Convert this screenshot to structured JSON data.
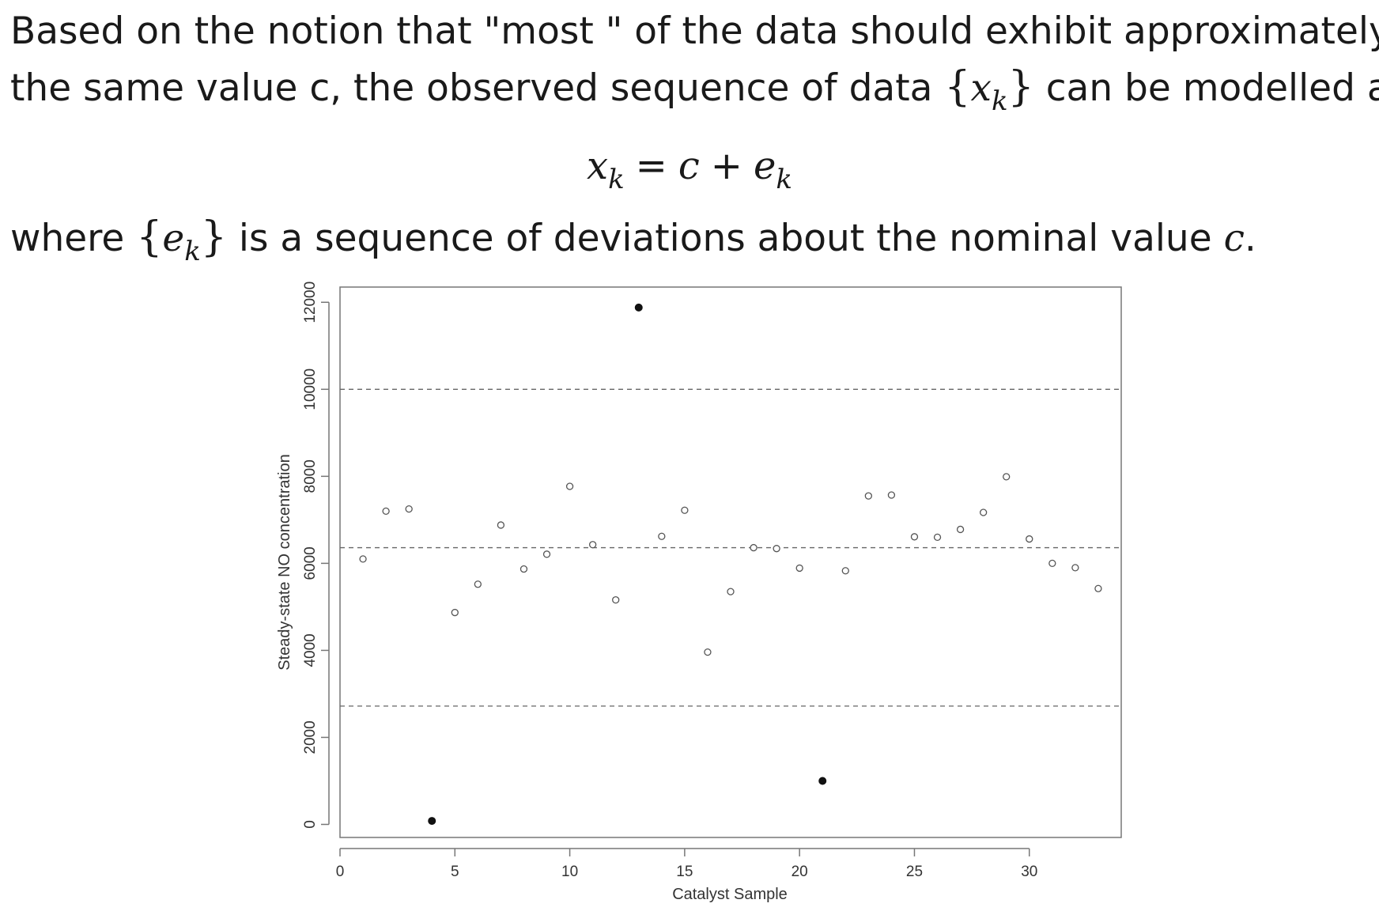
{
  "text": {
    "line1": "Based on the notion that \"most \" of the data should exhibit approximately",
    "line2_before": "the same value c, the observed sequence of data",
    "line2_var": "x",
    "line2_sub": "k",
    "line2_after": "can be modelled as",
    "eq_lhs": "x",
    "eq_lhs_sub": "k",
    "eq_equals": "=",
    "eq_c": "c",
    "eq_plus": "+",
    "eq_e": "e",
    "eq_e_sub": "k",
    "line3_before": "where",
    "line3_var": "e",
    "line3_sub": "k",
    "line3_mid": "is a sequence of deviations about the nominal value",
    "line3_c": "c",
    "line3_end": ".",
    "brace_open": "{",
    "brace_close": "}"
  },
  "chart_data": {
    "type": "scatter",
    "xlabel": "Catalyst Sample",
    "ylabel": "Steady-state NO concentration",
    "xlim": [
      0,
      34
    ],
    "ylim": [
      -300,
      12350
    ],
    "xticks": [
      0,
      5,
      10,
      15,
      20,
      25,
      30
    ],
    "yticks": [
      0,
      2000,
      4000,
      6000,
      8000,
      10000,
      12000
    ],
    "hlines": [
      10000,
      6360,
      2720
    ],
    "hline_style": "dashed",
    "grid": false,
    "marker_open": "hollow-circle",
    "marker_outlier": "filled-circle",
    "points": [
      {
        "x": 1,
        "y": 6100,
        "outlier": false
      },
      {
        "x": 2,
        "y": 7200,
        "outlier": false
      },
      {
        "x": 3,
        "y": 7250,
        "outlier": false
      },
      {
        "x": 4,
        "y": 80,
        "outlier": true
      },
      {
        "x": 5,
        "y": 4870,
        "outlier": false
      },
      {
        "x": 6,
        "y": 5520,
        "outlier": false
      },
      {
        "x": 7,
        "y": 6880,
        "outlier": false
      },
      {
        "x": 8,
        "y": 5870,
        "outlier": false
      },
      {
        "x": 9,
        "y": 6210,
        "outlier": false
      },
      {
        "x": 10,
        "y": 7770,
        "outlier": false
      },
      {
        "x": 11,
        "y": 6430,
        "outlier": false
      },
      {
        "x": 12,
        "y": 5160,
        "outlier": false
      },
      {
        "x": 13,
        "y": 11880,
        "outlier": true
      },
      {
        "x": 14,
        "y": 6620,
        "outlier": false
      },
      {
        "x": 15,
        "y": 7220,
        "outlier": false
      },
      {
        "x": 16,
        "y": 3960,
        "outlier": false
      },
      {
        "x": 17,
        "y": 5350,
        "outlier": false
      },
      {
        "x": 18,
        "y": 6360,
        "outlier": false
      },
      {
        "x": 19,
        "y": 6340,
        "outlier": false
      },
      {
        "x": 20,
        "y": 5890,
        "outlier": false
      },
      {
        "x": 21,
        "y": 1000,
        "outlier": true
      },
      {
        "x": 22,
        "y": 5830,
        "outlier": false
      },
      {
        "x": 23,
        "y": 7550,
        "outlier": false
      },
      {
        "x": 24,
        "y": 7570,
        "outlier": false
      },
      {
        "x": 25,
        "y": 6610,
        "outlier": false
      },
      {
        "x": 26,
        "y": 6600,
        "outlier": false
      },
      {
        "x": 27,
        "y": 6780,
        "outlier": false
      },
      {
        "x": 28,
        "y": 7170,
        "outlier": false
      },
      {
        "x": 29,
        "y": 7990,
        "outlier": false
      },
      {
        "x": 30,
        "y": 6560,
        "outlier": false
      },
      {
        "x": 31,
        "y": 6000,
        "outlier": false
      },
      {
        "x": 32,
        "y": 5900,
        "outlier": false
      },
      {
        "x": 33,
        "y": 5420,
        "outlier": false
      }
    ]
  }
}
